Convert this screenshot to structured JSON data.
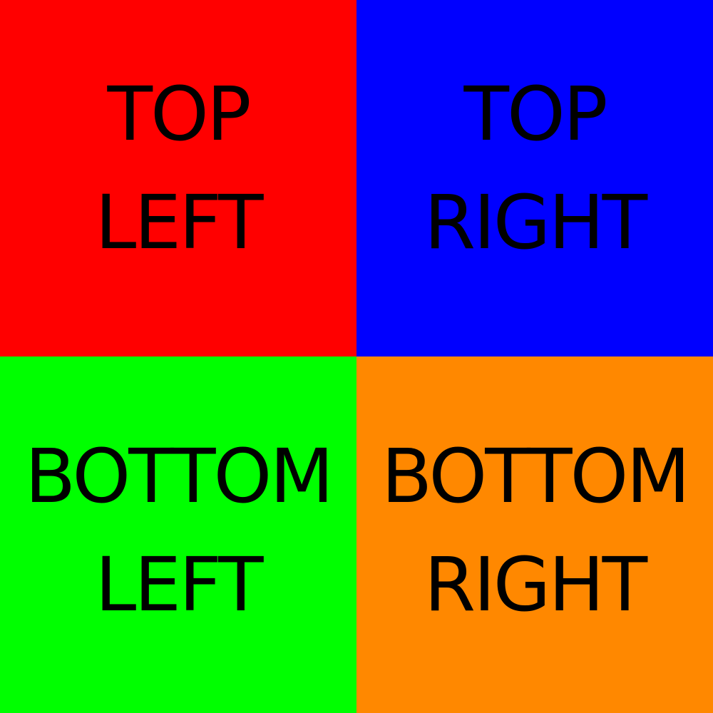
{
  "quadrants": {
    "top_left": {
      "line1": "TOP",
      "line2": "LEFT",
      "color": "#ff0000"
    },
    "top_right": {
      "line1": "TOP",
      "line2": "RIGHT",
      "color": "#0000ff"
    },
    "bottom_left": {
      "line1": "BOTTOM",
      "line2": "LEFT",
      "color": "#00ff00"
    },
    "bottom_right": {
      "line1": "BOTTOM",
      "line2": "RIGHT",
      "color": "#ff8800"
    }
  },
  "text_color": "#000000"
}
